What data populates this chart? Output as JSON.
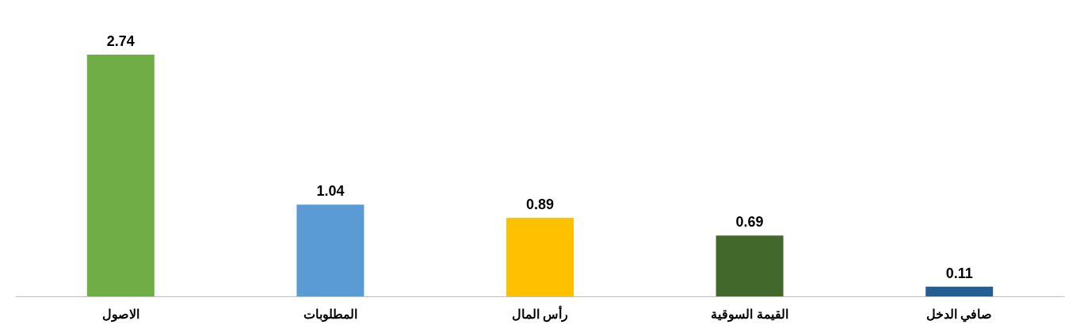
{
  "chart_data": {
    "type": "bar",
    "categories": [
      "الاصول",
      "المطلوبات",
      "رأس المال",
      "القيمة السوقية",
      "صافي الدخل"
    ],
    "values": [
      2.74,
      1.04,
      0.89,
      0.69,
      0.11
    ],
    "colors": [
      "#70ad47",
      "#5b9bd5",
      "#ffc000",
      "#43682b",
      "#255e91"
    ],
    "data_labels": true
  }
}
